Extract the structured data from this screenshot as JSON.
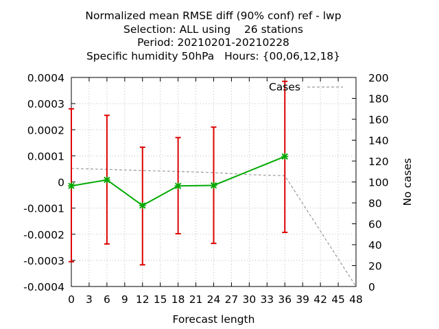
{
  "chart_data": {
    "type": "line",
    "title_lines": [
      "Normalized mean RMSE diff (90% conf) ref - lwp",
      "Selection: ALL using    26 stations",
      "Period: 20210201-20210228",
      "Specific humidity 50hPa   Hours: {00,06,12,18}"
    ],
    "xlabel": "Forecast length",
    "ylabel": "",
    "y2label": "No cases",
    "xlim": [
      0,
      48
    ],
    "ylim": [
      -0.0004,
      0.0004
    ],
    "y2lim": [
      0,
      200
    ],
    "xticks": [
      "0",
      "3",
      "6",
      "9",
      "12",
      "15",
      "18",
      "21",
      "24",
      "27",
      "30",
      "33",
      "36",
      "39",
      "42",
      "45",
      "48"
    ],
    "yticks": [
      "0.0004",
      "0.0003",
      "0.0002",
      "0.0001",
      "0",
      "-0.0001",
      "-0.0002",
      "-0.0003",
      "-0.0004"
    ],
    "y2ticks": [
      "200",
      "180",
      "160",
      "140",
      "120",
      "100",
      "80",
      "60",
      "40",
      "20",
      "0"
    ],
    "grid": true,
    "legend_position": "top-right",
    "series": [
      {
        "name": "",
        "axis": "y",
        "color": "#00aa00",
        "x": [
          0,
          6,
          12,
          18,
          24,
          36
        ],
        "y": [
          -1.5e-05,
          8e-06,
          -9e-05,
          -1.5e-05,
          -1.3e-05,
          9.75e-05
        ],
        "error_low": [
          -0.000305,
          -0.000237,
          -0.000317,
          -0.000198,
          -0.000235,
          -0.000193
        ],
        "error_high": [
          0.00028,
          0.000255,
          0.000133,
          0.00017,
          0.00021,
          0.000385
        ],
        "error_color": "#dd0000"
      },
      {
        "name": "Cases",
        "axis": "y2",
        "color": "#999999",
        "x": [
          0,
          6,
          12,
          18,
          24,
          30,
          36,
          48
        ],
        "y": [
          113,
          112,
          111,
          110,
          109,
          107,
          106,
          0
        ]
      }
    ]
  }
}
